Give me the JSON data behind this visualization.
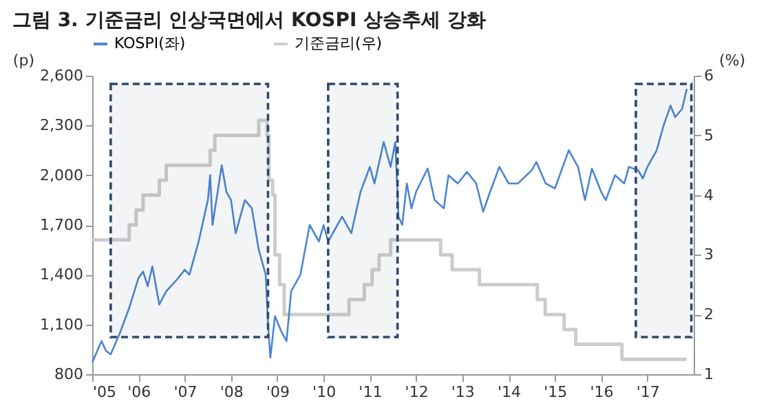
{
  "chart_data": {
    "type": "line",
    "title": "그림 3. 기준금리 인상국면에서 KOSPI 상승추세 강화",
    "ylabel": "(p)",
    "y2label": "(%)",
    "xlim": [
      2005,
      2018
    ],
    "xticks": [
      {
        "value": 2005,
        "label": "'05"
      },
      {
        "value": 2006,
        "label": "'06"
      },
      {
        "value": 2007,
        "label": "'07"
      },
      {
        "value": 2008,
        "label": "'08"
      },
      {
        "value": 2009,
        "label": "'09"
      },
      {
        "value": 2010,
        "label": "'10"
      },
      {
        "value": 2011,
        "label": "'11"
      },
      {
        "value": 2012,
        "label": "'12"
      },
      {
        "value": 2013,
        "label": "'13"
      },
      {
        "value": 2014,
        "label": "'14"
      },
      {
        "value": 2015,
        "label": "'15"
      },
      {
        "value": 2016,
        "label": "'16"
      },
      {
        "value": 2017,
        "label": "'17"
      }
    ],
    "ylim": [
      800,
      2600
    ],
    "yticks": [
      800,
      {
        "value": 1100,
        "label": "1,100"
      },
      {
        "value": 1400,
        "label": "1,400"
      },
      {
        "value": 1700,
        "label": "1,700"
      },
      {
        "value": 2000,
        "label": "2,000"
      },
      {
        "value": 2300,
        "label": "2,300"
      },
      {
        "value": 2600,
        "label": "2,600"
      }
    ],
    "y2lim": [
      1,
      6
    ],
    "y2ticks": [
      1,
      2,
      3,
      4,
      5,
      6
    ],
    "grid": false,
    "legend": "top",
    "marker": "none",
    "series": [
      {
        "name": "KOSPI(좌)",
        "color": "#4a86d0",
        "x": [
          2005.0,
          2005.2,
          2005.3,
          2005.4,
          2005.6,
          2005.8,
          2006.0,
          2006.1,
          2006.2,
          2006.3,
          2006.45,
          2006.6,
          2006.8,
          2007.0,
          2007.1,
          2007.3,
          2007.5,
          2007.55,
          2007.6,
          2007.8,
          2007.9,
          2008.0,
          2008.1,
          2008.3,
          2008.45,
          2008.6,
          2008.75,
          2008.8,
          2008.85,
          2008.95,
          2009.1,
          2009.2,
          2009.3,
          2009.5,
          2009.7,
          2009.9,
          2010.0,
          2010.1,
          2010.4,
          2010.6,
          2010.8,
          2011.0,
          2011.1,
          2011.3,
          2011.45,
          2011.55,
          2011.62,
          2011.7,
          2011.8,
          2011.9,
          2012.0,
          2012.25,
          2012.4,
          2012.6,
          2012.7,
          2012.9,
          2013.1,
          2013.3,
          2013.45,
          2013.6,
          2013.8,
          2014.0,
          2014.2,
          2014.5,
          2014.6,
          2014.8,
          2015.0,
          2015.3,
          2015.5,
          2015.65,
          2015.8,
          2016.0,
          2016.1,
          2016.3,
          2016.5,
          2016.6,
          2016.8,
          2016.9,
          2017.0,
          2017.2,
          2017.35,
          2017.5,
          2017.6,
          2017.75,
          2017.85
        ],
        "values": [
          870,
          1000,
          940,
          920,
          1050,
          1200,
          1380,
          1420,
          1330,
          1450,
          1220,
          1300,
          1360,
          1430,
          1400,
          1600,
          1850,
          2000,
          1700,
          2060,
          1900,
          1850,
          1650,
          1850,
          1800,
          1550,
          1400,
          1100,
          900,
          1150,
          1050,
          1000,
          1300,
          1400,
          1700,
          1600,
          1700,
          1600,
          1750,
          1650,
          1900,
          2050,
          1950,
          2200,
          2050,
          2200,
          1750,
          1700,
          1950,
          1800,
          1900,
          2040,
          1850,
          1800,
          2000,
          1950,
          2020,
          1950,
          1780,
          1900,
          2050,
          1950,
          1950,
          2030,
          2080,
          1950,
          1920,
          2150,
          2050,
          1850,
          2040,
          1900,
          1850,
          2000,
          1950,
          2050,
          2030,
          1980,
          2050,
          2150,
          2300,
          2420,
          2350,
          2400,
          2520
        ]
      },
      {
        "name": "기준금리(우)",
        "color": "#cccccc",
        "type": "step",
        "axis": "y2",
        "x": [
          2005.0,
          2005.8,
          2005.95,
          2006.1,
          2006.45,
          2006.6,
          2007.55,
          2007.65,
          2008.6,
          2008.78,
          2008.82,
          2008.9,
          2008.95,
          2009.05,
          2009.15,
          2010.55,
          2010.88,
          2011.05,
          2011.2,
          2011.45,
          2012.53,
          2012.78,
          2013.37,
          2014.62,
          2014.79,
          2015.2,
          2015.45,
          2016.45,
          2017.85
        ],
        "values": [
          3.25,
          3.5,
          3.75,
          4.0,
          4.25,
          4.5,
          4.75,
          5.0,
          5.25,
          5.0,
          4.25,
          4.0,
          3.0,
          2.5,
          2.0,
          2.25,
          2.5,
          2.75,
          3.0,
          3.25,
          3.0,
          2.75,
          2.5,
          2.25,
          2.0,
          1.75,
          1.5,
          1.25,
          1.25
        ]
      }
    ],
    "bands": [
      {
        "axis": "x",
        "from": 2005.4,
        "to": 2008.8,
        "color": "#2e4a6b"
      },
      {
        "axis": "x",
        "from": 2010.1,
        "to": 2011.6,
        "color": "#2e4a6b"
      },
      {
        "axis": "x",
        "from": 2016.75,
        "to": 2017.95,
        "color": "#2e4a6b"
      }
    ]
  }
}
